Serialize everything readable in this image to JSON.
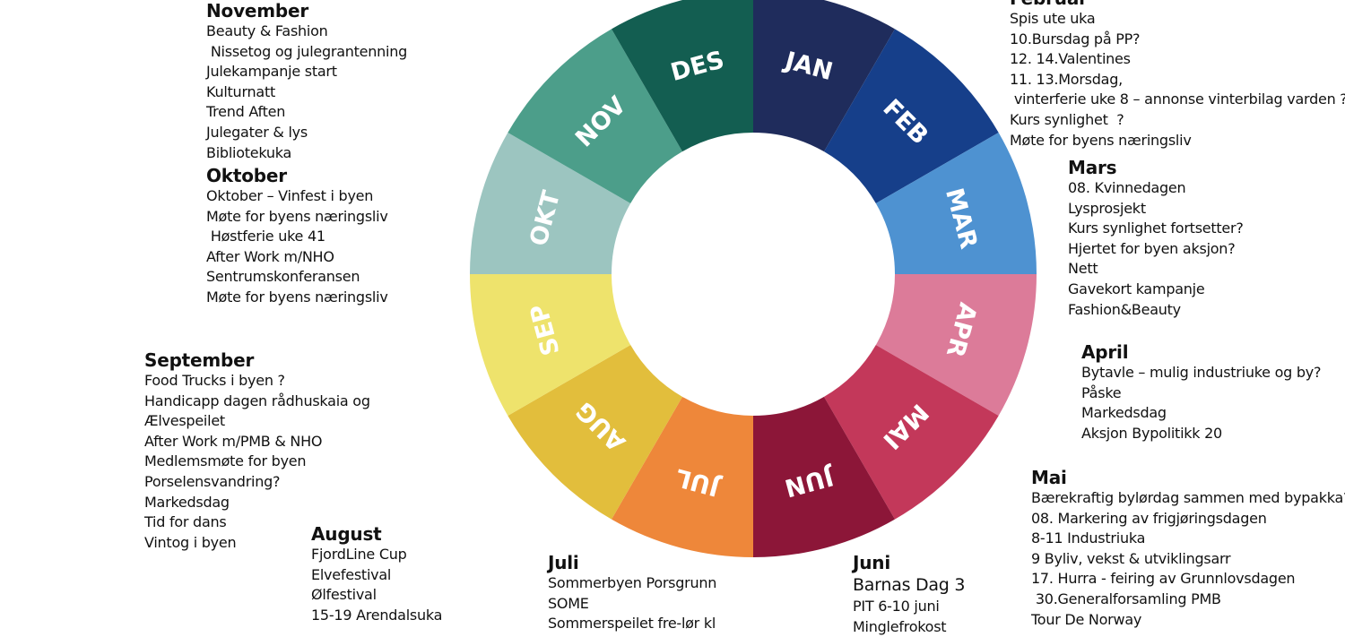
{
  "wheel": {
    "months": [
      {
        "label": "JAN",
        "color": "#1F2C5C"
      },
      {
        "label": "FEB",
        "color": "#163F8A"
      },
      {
        "label": "MAR",
        "color": "#4E92D1"
      },
      {
        "label": "APR",
        "color": "#DC7B99"
      },
      {
        "label": "MAI",
        "color": "#C3385A"
      },
      {
        "label": "JUN",
        "color": "#8C1638"
      },
      {
        "label": "JUL",
        "color": "#EE873A"
      },
      {
        "label": "AUG",
        "color": "#E2BE3C"
      },
      {
        "label": "SEP",
        "color": "#EEE36C"
      },
      {
        "label": "OKT",
        "color": "#9CC5C0"
      },
      {
        "label": "NOV",
        "color": "#4C9E8A"
      },
      {
        "label": "DES",
        "color": "#135E51"
      }
    ]
  },
  "blocks": {
    "februar": {
      "title": "Februar",
      "items": [
        {
          "text": "Spis ute uka"
        },
        {
          "text": "10.Bursdag på PP?"
        },
        {
          "text": "12. 14.Valentines"
        },
        {
          "text": "11. 13.Morsdag,"
        },
        {
          "text": " vinterferie uke 8 – annonse vinterbilag varden ?"
        },
        {
          "text": "Kurs synlighet  ?"
        },
        {
          "text": "Møte for byens næringsliv"
        }
      ]
    },
    "mars": {
      "title": "Mars",
      "items": [
        {
          "text": "08. Kvinnedagen"
        },
        {
          "text": "Lysprosjekt"
        },
        {
          "text": "Kurs synlighet fortsetter?"
        },
        {
          "text": "Hjertet for byen aksjon?"
        },
        {
          "text": "Nett"
        },
        {
          "text": "Gavekort kampanje"
        },
        {
          "text": "Fashion&Beauty"
        }
      ]
    },
    "april": {
      "title": "April",
      "items": [
        {
          "text": "Bytavle – mulig industriuke og by?"
        },
        {
          "text": "Påske"
        },
        {
          "text": "Markedsdag"
        },
        {
          "text": "Aksjon Bypolitikk 20"
        }
      ]
    },
    "mai": {
      "title": "Mai",
      "items": [
        {
          "text": "Bærekraftig bylørdag sammen med bypakka?"
        },
        {
          "text": "08. Markering av frigjøringsdagen"
        },
        {
          "text": "8-11 Industriuka"
        },
        {
          "text": "9 Byliv, vekst & utviklingsarr"
        },
        {
          "text": "17. Hurra - feiring av Grunnlovsdagen"
        },
        {
          "text": " 30.Generalforsamling PMB"
        },
        {
          "text": "Tour De Norway"
        }
      ]
    },
    "juni": {
      "title": "Juni",
      "items": [
        {
          "text": "Barnas Dag 3",
          "big": true
        },
        {
          "text": "PIT 6-10 juni"
        },
        {
          "text": "Minglefrokost"
        }
      ]
    },
    "juli": {
      "title": "Juli",
      "items": [
        {
          "text": "Sommerbyen Porsgrunn"
        },
        {
          "text": "SOME"
        },
        {
          "text": "Sommerspeilet fre-lør kl"
        }
      ]
    },
    "august": {
      "title": "August",
      "items": [
        {
          "text": "FjordLine Cup"
        },
        {
          "text": "Elvefestival"
        },
        {
          "text": "Ølfestival"
        },
        {
          "text": "15-19 Arendalsuka"
        }
      ]
    },
    "september": {
      "title": "September",
      "items": [
        {
          "text": "Food Trucks i byen ?"
        },
        {
          "text": "Handicapp dagen rådhuskaia og"
        },
        {
          "text": "Ælvespeilet"
        },
        {
          "text": "After Work m/PMB & NHO"
        },
        {
          "text": "Medlemsmøte for byen"
        },
        {
          "text": "Porselensvandring?"
        },
        {
          "text": "Markedsdag"
        },
        {
          "text": "Tid for dans"
        },
        {
          "text": "Vintog i byen"
        }
      ]
    },
    "oktober": {
      "title": "Oktober",
      "items": [
        {
          "text": "Oktober – Vinfest i byen"
        },
        {
          "text": "Møte for byens næringsliv"
        },
        {
          "text": " Høstferie uke 41"
        },
        {
          "text": "After Work m/NHO"
        },
        {
          "text": "Sentrumskonferansen"
        },
        {
          "text": "Møte for byens næringsliv"
        }
      ]
    },
    "november": {
      "title": "November",
      "items": [
        {
          "text": "Beauty & Fashion"
        },
        {
          "text": " Nissetog og julegrantenning"
        },
        {
          "text": "Julekampanje start"
        },
        {
          "text": "Kulturnatt"
        },
        {
          "text": "Trend Aften"
        },
        {
          "text": "Julegater & lys"
        },
        {
          "text": "Bibliotekuka"
        }
      ]
    }
  }
}
